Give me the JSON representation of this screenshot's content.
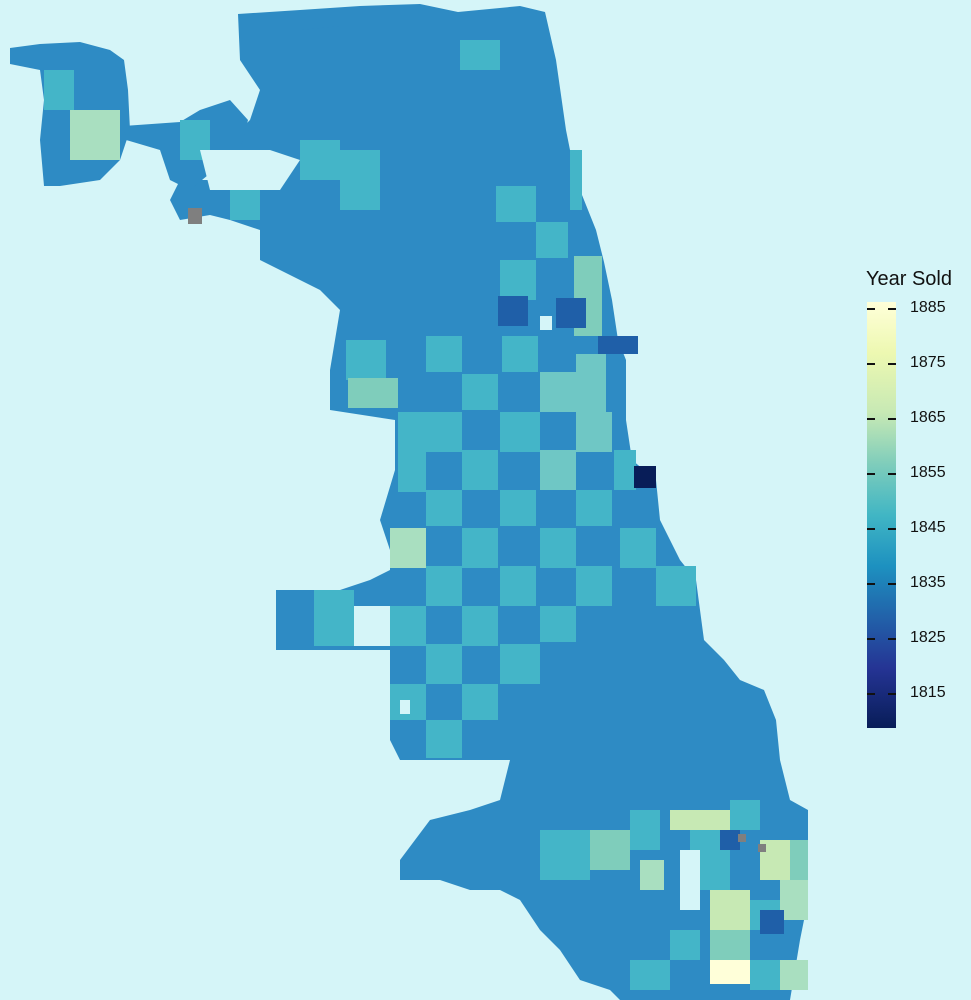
{
  "legend": {
    "title": "Year Sold",
    "labels": [
      "1885",
      "1875",
      "1865",
      "1855",
      "1845",
      "1835",
      "1825",
      "1815"
    ]
  },
  "colors": {
    "water_background": "#d5f5f8",
    "scale": [
      "#081d58",
      "#253494",
      "#225ea8",
      "#1d91c0",
      "#41b6c4",
      "#7fcdbb",
      "#c7e9b4",
      "#edf8b1",
      "#ffffd9"
    ],
    "no_data": "#7f7f7f"
  }
}
